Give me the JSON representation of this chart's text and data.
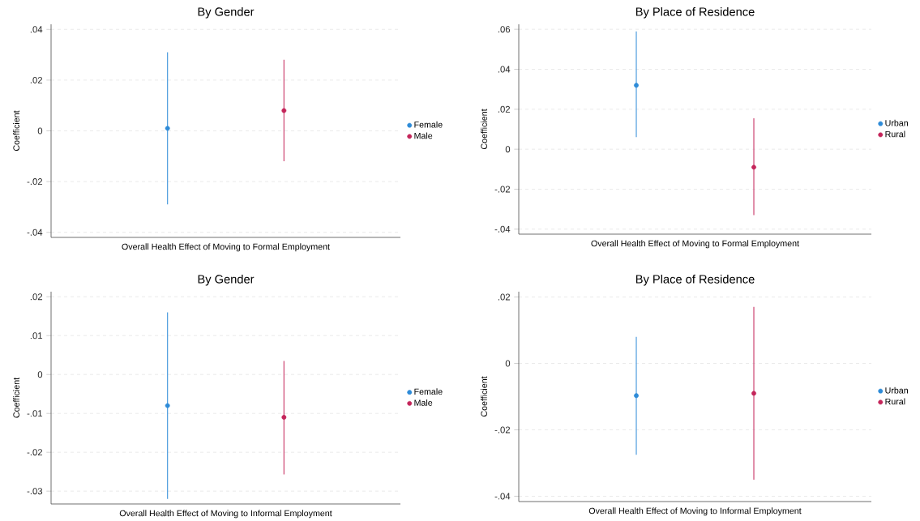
{
  "chart_data": [
    {
      "type": "scatter",
      "title": "By Gender",
      "xlabel": "Overall Health Effect of Moving to Formal Employment",
      "ylabel": "Coefficient",
      "categories": [
        null,
        null
      ],
      "series": [
        {
          "name": "Female",
          "color": "#2e8bd8",
          "values": [
            0.001,
            null
          ],
          "errors": [
            [
              -0.029,
              0.031
            ],
            null
          ]
        },
        {
          "name": "Male",
          "color": "#c4255a",
          "values": [
            null,
            0.008
          ],
          "errors": [
            null,
            [
              -0.012,
              0.028
            ]
          ]
        }
      ],
      "ylim": [
        -0.042,
        0.042
      ],
      "yticks": [
        {
          "value": -0.04,
          "label": "-.04"
        },
        {
          "value": -0.02,
          "label": "-.02"
        },
        0,
        {
          "value": 0.02,
          "label": ".02"
        },
        {
          "value": 0.04,
          "label": ".04"
        }
      ],
      "grid": "y",
      "legend": "right",
      "marker": "circle"
    },
    {
      "type": "scatter",
      "title": "By Place of Residence",
      "xlabel": "Overall Health Effect of Moving to Formal Employment",
      "ylabel": "Coefficient",
      "categories": [
        null,
        null
      ],
      "series": [
        {
          "name": "Urban",
          "color": "#2e8bd8",
          "values": [
            0.032,
            null
          ],
          "errors": [
            [
              0.006,
              0.059
            ],
            null
          ]
        },
        {
          "name": "Rural",
          "color": "#c4255a",
          "values": [
            null,
            -0.009
          ],
          "errors": [
            null,
            [
              -0.033,
              0.0155
            ]
          ]
        }
      ],
      "ylim": [
        -0.0425,
        0.0625
      ],
      "yticks": [
        {
          "value": -0.04,
          "label": "-.04"
        },
        {
          "value": -0.02,
          "label": "-.02"
        },
        0,
        {
          "value": 0.02,
          "label": ".02"
        },
        {
          "value": 0.04,
          "label": ".04"
        },
        {
          "value": 0.06,
          "label": ".06"
        }
      ],
      "grid": "y",
      "legend": "right",
      "marker": "circle"
    },
    {
      "type": "scatter",
      "title": "By Gender",
      "xlabel": "Overall Health Effect of Moving to Informal Employment",
      "ylabel": "Coefficient",
      "categories": [
        null,
        null
      ],
      "series": [
        {
          "name": "Female",
          "color": "#2e8bd8",
          "values": [
            -0.008,
            null
          ],
          "errors": [
            [
              -0.032,
              0.016
            ],
            null
          ]
        },
        {
          "name": "Male",
          "color": "#c4255a",
          "values": [
            null,
            -0.011
          ],
          "errors": [
            null,
            [
              -0.0257,
              0.0035
            ]
          ]
        }
      ],
      "ylim": [
        -0.0333,
        0.0213
      ],
      "yticks": [
        {
          "value": -0.03,
          "label": "-.03"
        },
        {
          "value": -0.02,
          "label": "-.02"
        },
        {
          "value": -0.01,
          "label": "-.01"
        },
        0,
        {
          "value": 0.01,
          "label": ".01"
        },
        {
          "value": 0.02,
          "label": ".02"
        }
      ],
      "grid": "y",
      "legend": "right",
      "marker": "circle"
    },
    {
      "type": "scatter",
      "title": "By Place of Residence",
      "xlabel": "Overall Health Effect of Moving to Informal Employment",
      "ylabel": "Coefficient",
      "categories": [
        null,
        null
      ],
      "series": [
        {
          "name": "Urban",
          "color": "#2e8bd8",
          "values": [
            -0.0097,
            null
          ],
          "errors": [
            [
              -0.0275,
              0.008
            ],
            null
          ]
        },
        {
          "name": "Rural",
          "color": "#c4255a",
          "values": [
            null,
            -0.009
          ],
          "errors": [
            null,
            [
              -0.035,
              0.017
            ]
          ]
        }
      ],
      "ylim": [
        -0.0416,
        0.0216
      ],
      "yticks": [
        {
          "value": -0.04,
          "label": "-.04"
        },
        {
          "value": -0.02,
          "label": "-.02"
        },
        0,
        {
          "value": 0.02,
          "label": ".02"
        }
      ],
      "grid": "y",
      "legend": "right",
      "marker": "circle"
    }
  ]
}
